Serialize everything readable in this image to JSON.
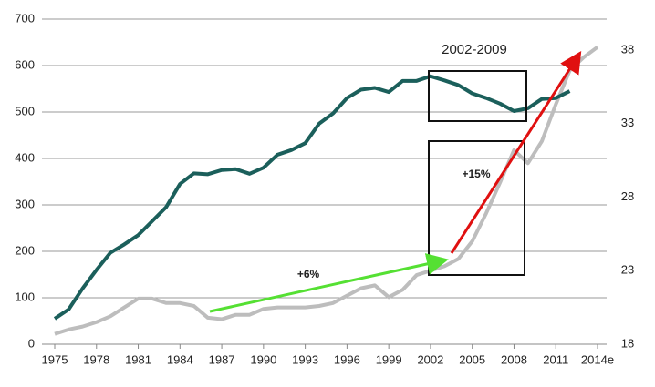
{
  "chart_data": {
    "type": "line",
    "x": [
      1975,
      1976,
      1977,
      1978,
      1979,
      1980,
      1981,
      1982,
      1983,
      1984,
      1985,
      1986,
      1987,
      1988,
      1989,
      1990,
      1991,
      1992,
      1993,
      1994,
      1995,
      1996,
      1997,
      1998,
      1999,
      2000,
      2001,
      2002,
      2003,
      2004,
      2005,
      2006,
      2007,
      2008,
      2009,
      2010,
      2011,
      2012,
      2013,
      2014
    ],
    "series": [
      {
        "color": "#1b5f5b",
        "axis": "y",
        "values": [
          55,
          75,
          120,
          160,
          197,
          215,
          235,
          265,
          295,
          345,
          368,
          366,
          375,
          377,
          367,
          380,
          408,
          418,
          433,
          475,
          497,
          530,
          548,
          552,
          543,
          567,
          567,
          577,
          568,
          558,
          540,
          530,
          518,
          502,
          508,
          528,
          530,
          545,
          null,
          null
        ]
      },
      {
        "color": "#bdbdbd",
        "axis": "y2",
        "values": [
          18.7,
          19.0,
          19.2,
          19.5,
          19.9,
          20.5,
          21.1,
          21.1,
          20.8,
          20.8,
          20.6,
          19.8,
          19.7,
          20.0,
          20.0,
          20.4,
          20.5,
          20.5,
          20.5,
          20.6,
          20.8,
          21.3,
          21.8,
          22.0,
          21.2,
          21.7,
          22.7,
          23.0,
          23.3,
          23.8,
          25.0,
          26.9,
          29.0,
          31.2,
          30.3,
          31.8,
          34.3,
          36.6,
          37.5,
          38.2
        ]
      }
    ],
    "xlim": [
      1975,
      2014
    ],
    "xticks": [
      1975,
      1978,
      1981,
      1984,
      1987,
      1990,
      1993,
      1996,
      1999,
      2002,
      2005,
      2008,
      2011,
      {
        "value": 2014,
        "label": "2014e"
      }
    ],
    "ylim": [
      0,
      700
    ],
    "yticks": [
      0,
      100,
      200,
      300,
      400,
      500,
      600,
      700
    ],
    "y2lim": [
      18,
      40.1
    ],
    "y2ticks": [
      18,
      23,
      28,
      33,
      38
    ],
    "grid": true,
    "annotations": [
      "2002-2009",
      "+6%",
      "+15%"
    ]
  }
}
